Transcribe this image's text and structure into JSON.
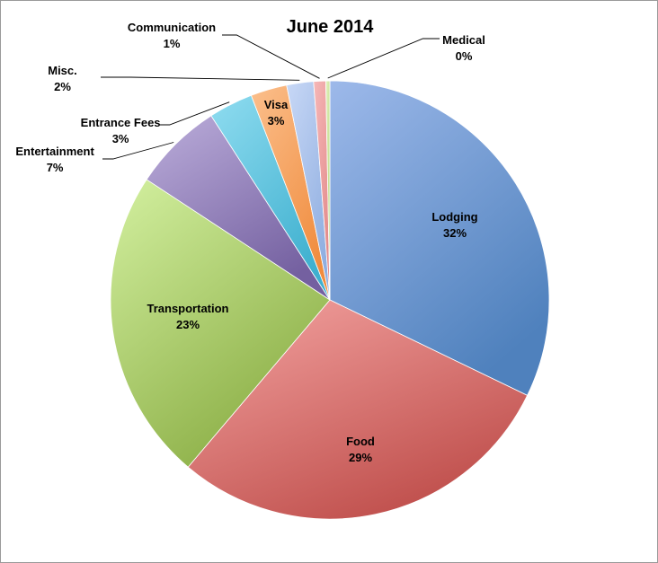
{
  "chart_data": {
    "type": "pie",
    "title": "June 2014",
    "slices": [
      {
        "label": "Lodging",
        "pct_label": "32%",
        "value": 32.5,
        "color": "#4f81bd",
        "light": "#9db9ea"
      },
      {
        "label": "Food",
        "pct_label": "29%",
        "value": 29.3,
        "color": "#c0504d",
        "light": "#f4a4a2"
      },
      {
        "label": "Transportation",
        "pct_label": "23%",
        "value": 23.3,
        "color": "#8bae45",
        "light": "#d3f0a0"
      },
      {
        "label": "Entertainment",
        "pct_label": "7%",
        "value": 6.7,
        "color": "#7460a0",
        "light": "#bcaedb"
      },
      {
        "label": "Entrance Fees",
        "pct_label": "3%",
        "value": 3.3,
        "color": "#3fb0cf",
        "light": "#8fdcf0"
      },
      {
        "label": "Visa",
        "pct_label": "3%",
        "value": 2.7,
        "color": "#f08c3e",
        "light": "#fbbf8c"
      },
      {
        "label": "Misc.",
        "pct_label": "2%",
        "value": 2.0,
        "color": "#8faee0",
        "light": "#c8d8f6"
      },
      {
        "label": "Communication",
        "pct_label": "1%",
        "value": 0.9,
        "color": "#e28a8a",
        "light": "#f6b8b8"
      },
      {
        "label": "Medical",
        "pct_label": "0%",
        "value": 0.3,
        "color": "#b7d57a",
        "light": "#e2f2c0"
      }
    ],
    "legend": "none"
  }
}
